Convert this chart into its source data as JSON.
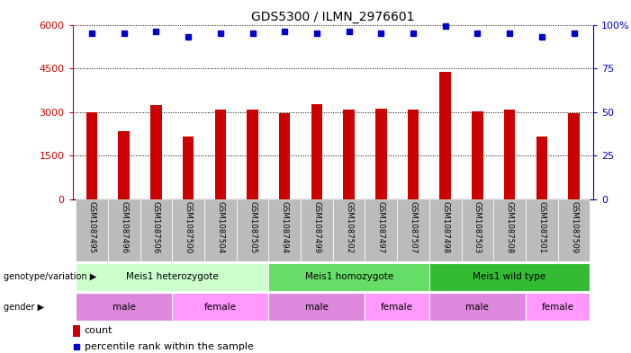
{
  "title": "GDS5300 / ILMN_2976601",
  "samples": [
    "GSM1087495",
    "GSM1087496",
    "GSM1087506",
    "GSM1087500",
    "GSM1087504",
    "GSM1087505",
    "GSM1087494",
    "GSM1087499",
    "GSM1087502",
    "GSM1087497",
    "GSM1087507",
    "GSM1087498",
    "GSM1087503",
    "GSM1087508",
    "GSM1087501",
    "GSM1087509"
  ],
  "counts": [
    2980,
    2350,
    3250,
    2150,
    3080,
    3100,
    2950,
    3280,
    3080,
    3130,
    3100,
    4380,
    3030,
    3100,
    2150,
    2960
  ],
  "percentiles": [
    95,
    95,
    96,
    93,
    95,
    95,
    96,
    95,
    96,
    95,
    95,
    99,
    95,
    95,
    93,
    95
  ],
  "bar_color": "#CC0000",
  "dot_color": "#0000CC",
  "left_axis_color": "#CC0000",
  "right_axis_color": "#0000CC",
  "ylim_left": [
    0,
    6000
  ],
  "ylim_right": [
    0,
    100
  ],
  "left_yticks": [
    0,
    1500,
    3000,
    4500,
    6000
  ],
  "right_yticks": [
    0,
    25,
    50,
    75,
    100
  ],
  "right_yticklabels": [
    "0",
    "25",
    "50",
    "75",
    "100%"
  ],
  "genotype_groups": [
    {
      "label": "Meis1 heterozygote",
      "start": 0,
      "end": 5
    },
    {
      "label": "Meis1 homozygote",
      "start": 6,
      "end": 10
    },
    {
      "label": "Meis1 wild type",
      "start": 11,
      "end": 15
    }
  ],
  "genotype_colors": [
    "#CCFFCC",
    "#66DD66",
    "#33BB33"
  ],
  "gender_groups": [
    {
      "label": "male",
      "start": 0,
      "end": 2
    },
    {
      "label": "female",
      "start": 3,
      "end": 5
    },
    {
      "label": "male",
      "start": 6,
      "end": 8
    },
    {
      "label": "female",
      "start": 9,
      "end": 10
    },
    {
      "label": "male",
      "start": 11,
      "end": 13
    },
    {
      "label": "female",
      "start": 14,
      "end": 15
    }
  ],
  "gender_color_male": "#DD88DD",
  "gender_color_female": "#FF99FF",
  "genotype_label": "genotype/variation",
  "gender_label": "gender",
  "legend_count_label": "count",
  "legend_percentile_label": "percentile rank within the sample",
  "tick_area_color": "#BBBBBB",
  "grid_color": "#000000"
}
